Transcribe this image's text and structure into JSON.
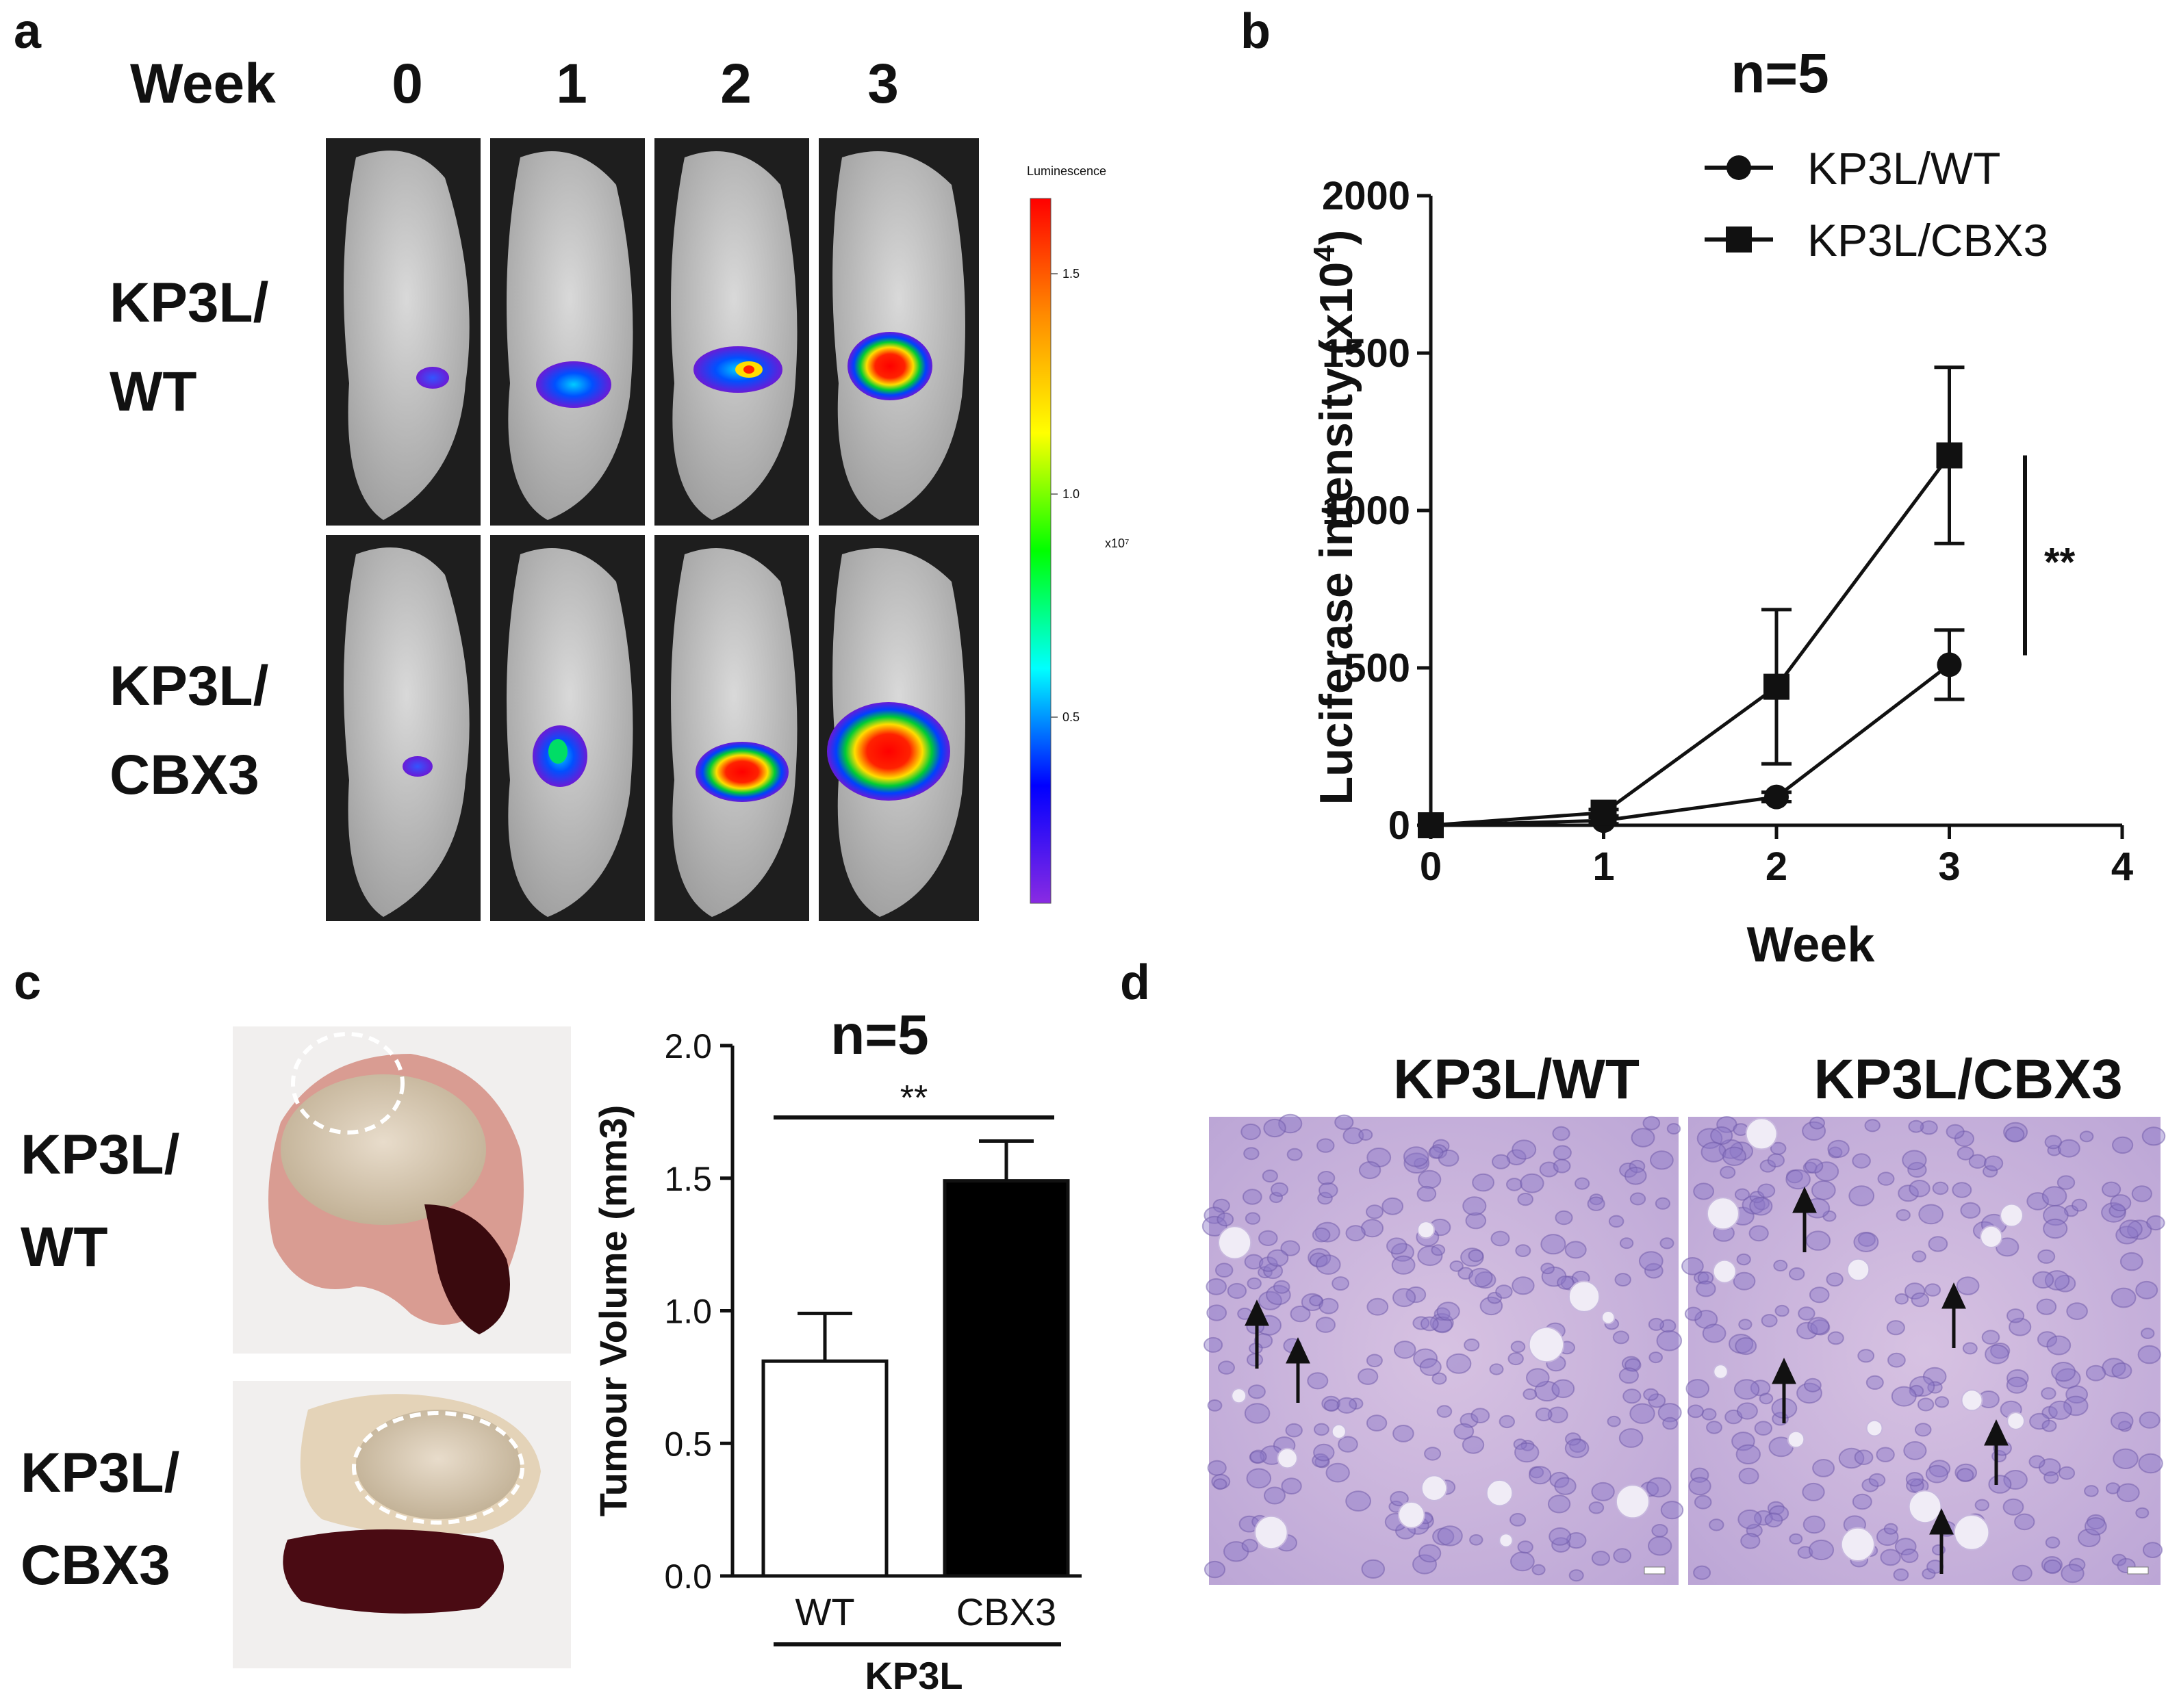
{
  "panels": {
    "a": {
      "letter": "a",
      "week_label": "Week",
      "weeks": [
        "0",
        "1",
        "2",
        "3"
      ],
      "rows": [
        {
          "line1": "KP3L/",
          "line2": "WT"
        },
        {
          "line1": "KP3L/",
          "line2": "CBX3"
        }
      ],
      "colorbar": {
        "title": "Luminescence",
        "ticks": [
          "1.5",
          "1.0",
          "0.5"
        ],
        "unit": "x10⁷",
        "colors": [
          "#ff0000",
          "#ff8c00",
          "#ffff00",
          "#00ff00",
          "#00ffff",
          "#0000ff",
          "#8a2be2"
        ]
      }
    },
    "b": {
      "letter": "b",
      "n_label": "n=5",
      "significance": "**"
    },
    "c": {
      "letter": "c",
      "n_label": "n=5",
      "significance": "**",
      "group_label": "KP3L",
      "rows": [
        {
          "line1": "KP3L/",
          "line2": "WT"
        },
        {
          "line1": "KP3L/",
          "line2": "CBX3"
        }
      ]
    },
    "d": {
      "letter": "d",
      "titles": [
        "KP3L/WT",
        "KP3L/CBX3"
      ]
    }
  },
  "chart_data": [
    {
      "id": "panel-b",
      "type": "line",
      "title": "n=5",
      "xlabel": "Week",
      "ylabel_main": "Luciferase intensity (x10",
      "ylabel_sup": "4",
      "ylabel_end": ")",
      "xlim": [
        0,
        4
      ],
      "ylim": [
        0,
        2000
      ],
      "xticks": [
        "0",
        "1",
        "2",
        "3",
        "4"
      ],
      "yticks": [
        "0",
        "500",
        "1000",
        "1500",
        "2000"
      ],
      "x": [
        0,
        1,
        2,
        3
      ],
      "series": [
        {
          "name": "KP3L/WT",
          "marker": "circle",
          "values": [
            0,
            15,
            90,
            510
          ],
          "errors": [
            0,
            10,
            15,
            110
          ]
        },
        {
          "name": "KP3L/CBX3",
          "marker": "square",
          "values": [
            0,
            40,
            440,
            1175
          ],
          "errors": [
            0,
            10,
            245,
            280
          ]
        }
      ],
      "legend_position": "top-right",
      "annotation": "**"
    },
    {
      "id": "panel-c",
      "type": "bar",
      "title": "n=5",
      "xlabel": "KP3L",
      "ylabel": "Tumour Volume (mm3)",
      "categories": [
        "WT",
        "CBX3"
      ],
      "values": [
        0.81,
        1.49
      ],
      "errors": [
        0.18,
        0.15
      ],
      "fills": [
        "#ffffff",
        "#000000"
      ],
      "ylim": [
        0,
        2.0
      ],
      "yticks": [
        "0.0",
        "0.5",
        "1.0",
        "1.5",
        "2.0"
      ],
      "annotation": "**"
    }
  ]
}
